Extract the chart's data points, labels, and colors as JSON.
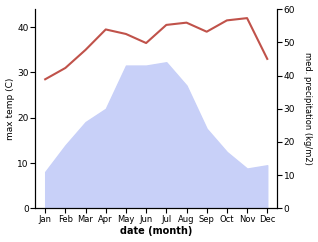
{
  "months": [
    "Jan",
    "Feb",
    "Mar",
    "Apr",
    "May",
    "Jun",
    "Jul",
    "Aug",
    "Sep",
    "Oct",
    "Nov",
    "Dec"
  ],
  "month_positions": [
    1,
    2,
    3,
    4,
    5,
    6,
    7,
    8,
    9,
    10,
    11,
    12
  ],
  "temp": [
    28.5,
    31.0,
    35.0,
    39.5,
    38.5,
    36.5,
    40.5,
    41.0,
    39.0,
    41.5,
    42.0,
    33.0
  ],
  "precip": [
    11,
    19,
    26,
    30,
    43,
    43,
    44,
    37,
    24,
    17,
    12,
    13
  ],
  "temp_color": "#c0524a",
  "precip_fill_color": "#c8d0f8",
  "left_ylabel": "max temp (C)",
  "right_ylabel": "med. precipitation (kg/m2)",
  "xlabel": "date (month)",
  "left_ylim": [
    0,
    44
  ],
  "right_ylim": [
    0,
    60
  ],
  "left_yticks": [
    0,
    10,
    20,
    30,
    40
  ],
  "right_yticks": [
    0,
    10,
    20,
    30,
    40,
    50,
    60
  ],
  "background_color": "#ffffff",
  "figwidth": 3.18,
  "figheight": 2.42,
  "dpi": 100
}
